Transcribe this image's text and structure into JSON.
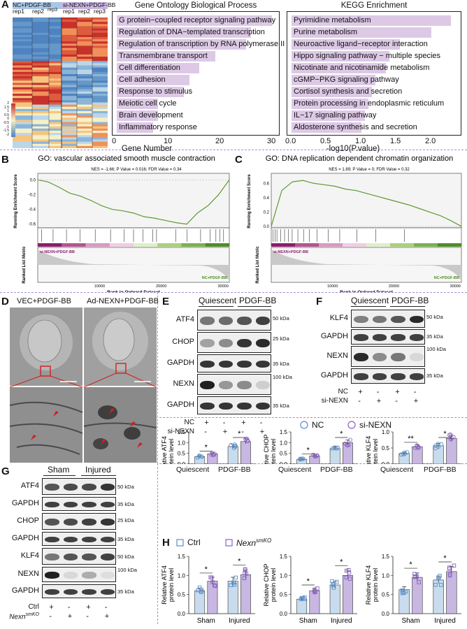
{
  "panels": {
    "a": "A",
    "b": "B",
    "c": "C",
    "d": "D",
    "e": "E",
    "f": "F",
    "g": "G",
    "h": "H"
  },
  "heatmap": {
    "group1": "NC+PDGF-BB",
    "group2": "si-NEXN+PDGF-BB",
    "reps": [
      "rep1",
      "rep2",
      "rep3",
      "rep1",
      "rep2",
      "rep3"
    ],
    "colorbar": [
      "2",
      "1.5",
      "1",
      "0.5",
      "0",
      "-0.5",
      "-1",
      "-1.5",
      "-2"
    ],
    "colors": {
      "high": "#c8302b",
      "mid": "#f6f0c6",
      "low": "#4f83c0"
    }
  },
  "go": {
    "title": "Gene Ontology Biological Process",
    "xlabel": "Gene Number",
    "ticks": [
      "0",
      "10",
      "20",
      "30"
    ],
    "terms": [
      {
        "label": "G protein−coupled receptor signaling pathway",
        "value": 30
      },
      {
        "label": "Regulation of DNA−templated transcription",
        "value": 26
      },
      {
        "label": "Regulation of transcription by RNA polymerase II",
        "value": 25
      },
      {
        "label": "Transmembrane transport",
        "value": 19
      },
      {
        "label": "Cell differentiation",
        "value": 16
      },
      {
        "label": "Cell adhesion",
        "value": 14
      },
      {
        "label": "Response to stimulus",
        "value": 13
      },
      {
        "label": "Meiotic cell cycle",
        "value": 8
      },
      {
        "label": "Brain development",
        "value": 8
      },
      {
        "label": "Inflammatory response",
        "value": 7
      }
    ]
  },
  "kegg": {
    "title": "KEGG Enrichment",
    "xlabel": "-log10(P.value)",
    "ticks": [
      "0.0",
      "0.5",
      "1.0",
      "1.5",
      "2.0"
    ],
    "terms": [
      {
        "label": "Pyrimidine metabolism",
        "value": 2.28
      },
      {
        "label": "Purine metabolism",
        "value": 2.0
      },
      {
        "label": "Neuroactive ligand−receptor interaction",
        "value": 1.55
      },
      {
        "label": "Hippo signaling pathway − multiple species",
        "value": 1.4
      },
      {
        "label": "Nicotinate and nicotinamide metabolism",
        "value": 1.35
      },
      {
        "label": "cGMP−PKG signaling pathway",
        "value": 1.2
      },
      {
        "label": "Cortisol synthesis and secretion",
        "value": 1.15
      },
      {
        "label": "Protein processing in endoplasmic reticulum",
        "value": 1.1
      },
      {
        "label": "IL−17 signaling pathway",
        "value": 1.05
      },
      {
        "label": "Aldosterone synthesis and secretion",
        "value": 1.0
      }
    ]
  },
  "gsea_b": {
    "title": "GO: vascular associated smooth muscle contraction",
    "stats": "NES = -1.66; P Value = 0.016; FDR Value = 0.34",
    "ylabel_top": "Running Enrichment Score",
    "ylabel_bottom": "Ranked List Metric",
    "yticks": [
      "0.0",
      "-0.2",
      "-0.4",
      "-0.6"
    ],
    "xticks": [
      "10000",
      "20000",
      "30000"
    ],
    "xlabel": "Rank in Ordered Dataset",
    "tag_top": "si-NEXN+PDGF-BB",
    "tag_bottom": "NC+PDGF-BB",
    "curve": [
      0,
      -0.03,
      -0.1,
      -0.18,
      -0.22,
      -0.28,
      -0.35,
      -0.4,
      -0.42,
      -0.45,
      -0.5,
      -0.52,
      -0.55,
      -0.58,
      -0.6,
      -0.45,
      -0.35,
      -0.2,
      0
    ]
  },
  "gsea_c": {
    "title": "GO: DNA replication dependent chromatin organization",
    "stats": "NES = 1.89; P Value = 0; FDR Value = 0.32",
    "ylabel_top": "Running Enrichment Score",
    "ylabel_bottom": "Ranked List Metric",
    "yticks": [
      "0.6",
      "0.4",
      "0.2",
      "0.0"
    ],
    "xticks": [
      "10000",
      "20000",
      "30000"
    ],
    "xlabel": "Rank in Ordered Dataset",
    "tag_top": "si-NEXN+PDGF-BB",
    "tag_bottom": "NC+PDGF-BB",
    "curve": [
      0,
      0.5,
      0.62,
      0.64,
      0.6,
      0.58,
      0.56,
      0.52,
      0.5,
      0.46,
      0.42,
      0.38,
      0.34,
      0.3,
      0.25,
      0.2,
      0.15,
      0.08,
      0
    ]
  },
  "em": {
    "left": "VEC+PDGF-BB",
    "right": "Ad-NEXN+PDGF-BB"
  },
  "wb_e": {
    "groups": [
      "Quiescent",
      "PDGF-BB"
    ],
    "rows": [
      {
        "name": "ATF4",
        "kda": "50 kDa"
      },
      {
        "name": "CHOP",
        "kda": "25 kDa"
      },
      {
        "name": "GAPDH",
        "kda": "35 kDa"
      },
      {
        "name": "NEXN",
        "kda": "100 kDa"
      },
      {
        "name": "GAPDH",
        "kda": "35 kDa"
      }
    ],
    "cond": [
      {
        "name": "NC",
        "marks": [
          "+",
          "-",
          "+",
          "-"
        ]
      },
      {
        "name": "si-NEXN",
        "marks": [
          "-",
          "+",
          "-",
          "+"
        ]
      }
    ]
  },
  "wb_f": {
    "groups": [
      "Quiescent",
      "PDGF-BB"
    ],
    "rows": [
      {
        "name": "KLF4",
        "kda": "50 kDa"
      },
      {
        "name": "GAPDH",
        "kda": "35 kDa"
      },
      {
        "name": "NEXN",
        "kda": "100 kDa"
      },
      {
        "name": "GAPDH",
        "kda": "35 kDa"
      }
    ],
    "cond": [
      {
        "name": "NC",
        "marks": [
          "+",
          "-",
          "+",
          "-"
        ]
      },
      {
        "name": "si-NEXN",
        "marks": [
          "-",
          "+",
          "-",
          "+"
        ]
      }
    ]
  },
  "wb_g": {
    "groups": [
      "Sham",
      "Injured"
    ],
    "rows": [
      {
        "name": "ATF4",
        "kda": "50 kDa"
      },
      {
        "name": "GAPDH",
        "kda": "35 kDa"
      },
      {
        "name": "CHOP",
        "kda": "25 kDa"
      },
      {
        "name": "GAPDH",
        "kda": "35 kDa"
      },
      {
        "name": "KLF4",
        "kda": "50 kDa"
      },
      {
        "name": "NEXN",
        "kda": "100 kDa"
      },
      {
        "name": "GAPDH",
        "kda": "35 kDa"
      }
    ],
    "cond": [
      {
        "name": "Ctrl",
        "marks": [
          "+",
          "-",
          "+",
          "-"
        ]
      },
      {
        "name": "Nexn",
        "sup": "smKO",
        "marks": [
          "-",
          "+",
          "-",
          "+"
        ]
      }
    ]
  },
  "legend_e": {
    "a": "NC",
    "b": "si-NEXN"
  },
  "legend_h": {
    "a": "Ctrl",
    "b": "Nexn",
    "b_sup": "smKO"
  },
  "chart_data": [
    {
      "type": "bar",
      "ylabel": "Relative ATF4 protein level",
      "categories": [
        "Quiescent",
        "PDGF-BB"
      ],
      "ylim": [
        0,
        1.5
      ],
      "yticks": [
        "0.0",
        "0.5",
        "1.0",
        "1.5"
      ],
      "series": [
        {
          "name": "NC",
          "values": [
            0.35,
            0.82
          ]
        },
        {
          "name": "si-NEXN",
          "values": [
            0.48,
            1.05
          ]
        }
      ],
      "sig": [
        "*",
        "*"
      ]
    },
    {
      "type": "bar",
      "ylabel": "Relative CHOP protein level",
      "categories": [
        "Quiescent",
        "PDGF-BB"
      ],
      "ylim": [
        0,
        1.5
      ],
      "yticks": [
        "0.0",
        "0.5",
        "1.0",
        "1.5"
      ],
      "series": [
        {
          "name": "NC",
          "values": [
            0.22,
            0.72
          ]
        },
        {
          "name": "si-NEXN",
          "values": [
            0.38,
            1.0
          ]
        }
      ],
      "sig": [
        "*",
        "*"
      ]
    },
    {
      "type": "bar",
      "ylabel": "Relative KLF4 protein level",
      "categories": [
        "Quiescent",
        "PDGF-BB"
      ],
      "ylim": [
        0,
        1.0
      ],
      "yticks": [
        "0.0",
        "0.5",
        "1.0"
      ],
      "series": [
        {
          "name": "NC",
          "values": [
            0.33,
            0.57
          ]
        },
        {
          "name": "si-NEXN",
          "values": [
            0.54,
            0.8
          ]
        }
      ],
      "sig": [
        "**",
        "*"
      ]
    },
    {
      "type": "bar",
      "ylabel": "Relative ATF4 protein level",
      "categories": [
        "Sham",
        "Injured"
      ],
      "ylim": [
        0,
        1.5
      ],
      "yticks": [
        "0.0",
        "0.5",
        "1.0",
        "1.5"
      ],
      "series": [
        {
          "name": "Ctrl",
          "values": [
            0.6,
            0.85
          ]
        },
        {
          "name": "Nexn smKO",
          "values": [
            0.85,
            1.02
          ]
        }
      ],
      "sig": [
        "*",
        "*"
      ]
    },
    {
      "type": "bar",
      "ylabel": "Relative CHOP protein level",
      "categories": [
        "Sham",
        "Injured"
      ],
      "ylim": [
        0,
        1.5
      ],
      "yticks": [
        "0.0",
        "0.5",
        "1.0",
        "1.5"
      ],
      "series": [
        {
          "name": "Ctrl",
          "values": [
            0.38,
            0.75
          ]
        },
        {
          "name": "Nexn smKO",
          "values": [
            0.6,
            1.0
          ]
        }
      ],
      "sig": [
        "*",
        "*"
      ]
    },
    {
      "type": "bar",
      "ylabel": "Relative KLF4 protein level",
      "categories": [
        "Sham",
        "Injured"
      ],
      "ylim": [
        0,
        1.5
      ],
      "yticks": [
        "0.0",
        "0.5",
        "1.0",
        "1.5"
      ],
      "series": [
        {
          "name": "Ctrl",
          "values": [
            0.63,
            0.88
          ]
        },
        {
          "name": "Nexn smKO",
          "values": [
            0.95,
            1.1
          ]
        }
      ],
      "sig": [
        "*",
        "*"
      ]
    }
  ]
}
